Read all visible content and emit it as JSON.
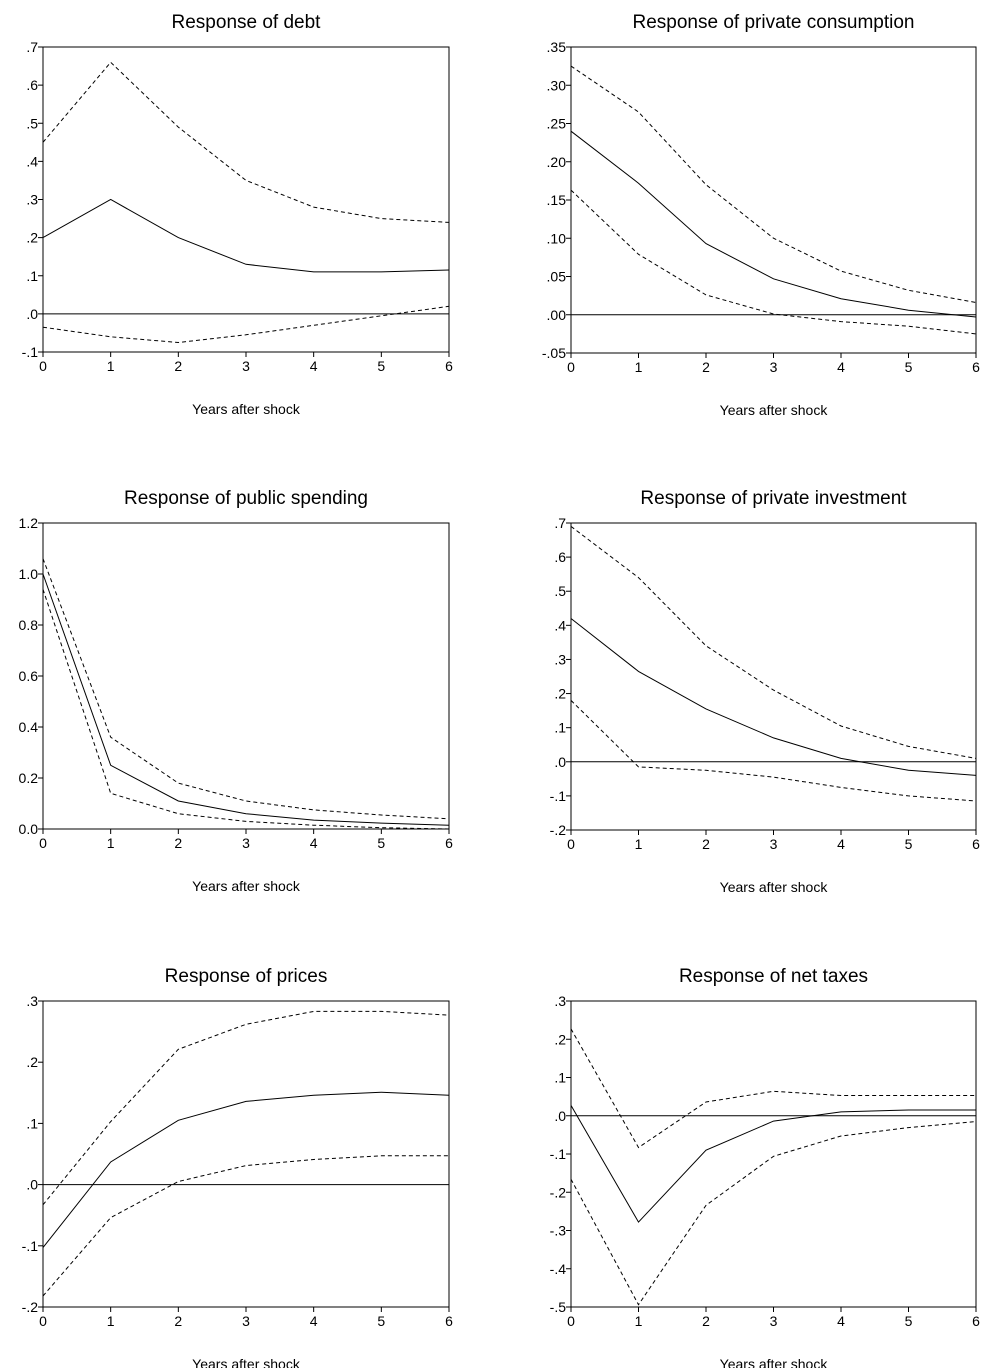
{
  "chart_data": [
    {
      "type": "line",
      "title": "Response of debt",
      "xlabel": "Years after shock",
      "ylabel": "",
      "x": [
        0,
        1,
        2,
        3,
        4,
        5,
        6
      ],
      "xlim": [
        0,
        6
      ],
      "ylim": [
        -0.1,
        0.7
      ],
      "yticks": [
        -0.1,
        0.0,
        0.1,
        0.2,
        0.3,
        0.4,
        0.5,
        0.6,
        0.7
      ],
      "ytick_labels": [
        "-.1",
        ".0",
        ".1",
        ".2",
        ".3",
        ".4",
        ".5",
        ".6",
        ".7"
      ],
      "zero_line": true,
      "grid": false,
      "series": [
        {
          "role": "upper band",
          "style": "dashed",
          "values": [
            0.45,
            0.66,
            0.49,
            0.35,
            0.28,
            0.25,
            0.24
          ]
        },
        {
          "role": "response",
          "style": "solid",
          "values": [
            0.2,
            0.3,
            0.2,
            0.13,
            0.11,
            0.11,
            0.115
          ]
        },
        {
          "role": "lower band",
          "style": "dashed",
          "values": [
            -0.035,
            -0.06,
            -0.075,
            -0.055,
            -0.03,
            -0.005,
            0.02
          ]
        }
      ]
    },
    {
      "type": "line",
      "title": "Response of private consumption",
      "xlabel": "Years after shock",
      "ylabel": "",
      "x": [
        0,
        1,
        2,
        3,
        4,
        5,
        6
      ],
      "xlim": [
        0,
        6
      ],
      "ylim": [
        -0.05,
        0.35
      ],
      "yticks": [
        -0.05,
        0.0,
        0.05,
        0.1,
        0.15,
        0.2,
        0.25,
        0.3,
        0.35
      ],
      "ytick_labels": [
        "-.05",
        ".00",
        ".05",
        ".10",
        ".15",
        ".20",
        ".25",
        ".30",
        ".35"
      ],
      "zero_line": true,
      "grid": false,
      "series": [
        {
          "role": "upper band",
          "style": "dashed",
          "values": [
            0.325,
            0.265,
            0.17,
            0.1,
            0.057,
            0.032,
            0.016
          ]
        },
        {
          "role": "response",
          "style": "solid",
          "values": [
            0.24,
            0.172,
            0.093,
            0.047,
            0.021,
            0.006,
            -0.003
          ]
        },
        {
          "role": "lower band",
          "style": "dashed",
          "values": [
            0.163,
            0.079,
            0.026,
            0.001,
            -0.009,
            -0.015,
            -0.025
          ]
        }
      ]
    },
    {
      "type": "line",
      "title": "Response of public spending",
      "xlabel": "Years after shock",
      "ylabel": "",
      "x": [
        0,
        1,
        2,
        3,
        4,
        5,
        6
      ],
      "xlim": [
        0,
        6
      ],
      "ylim": [
        0.0,
        1.2
      ],
      "yticks": [
        0.0,
        0.2,
        0.4,
        0.6,
        0.8,
        1.0,
        1.2
      ],
      "ytick_labels": [
        "0.0",
        "0.2",
        "0.4",
        "0.6",
        "0.8",
        "1.0",
        "1.2"
      ],
      "zero_line": false,
      "grid": false,
      "series": [
        {
          "role": "upper band",
          "style": "dashed",
          "values": [
            1.06,
            0.36,
            0.18,
            0.11,
            0.075,
            0.055,
            0.04
          ]
        },
        {
          "role": "response",
          "style": "solid",
          "values": [
            1.0,
            0.25,
            0.11,
            0.06,
            0.035,
            0.023,
            0.015
          ]
        },
        {
          "role": "lower band",
          "style": "dashed",
          "values": [
            0.94,
            0.14,
            0.06,
            0.03,
            0.015,
            0.005,
            0.0
          ]
        }
      ]
    },
    {
      "type": "line",
      "title": "Response of private investment",
      "xlabel": "Years after shock",
      "ylabel": "",
      "x": [
        0,
        1,
        2,
        3,
        4,
        5,
        6
      ],
      "xlim": [
        0,
        6
      ],
      "ylim": [
        -0.2,
        0.7
      ],
      "yticks": [
        -0.2,
        -0.1,
        0.0,
        0.1,
        0.2,
        0.3,
        0.4,
        0.5,
        0.6,
        0.7
      ],
      "ytick_labels": [
        "-.2",
        "-.1",
        ".0",
        ".1",
        ".2",
        ".3",
        ".4",
        ".5",
        ".6",
        ".7"
      ],
      "zero_line": true,
      "grid": false,
      "series": [
        {
          "role": "upper band",
          "style": "dashed",
          "values": [
            0.69,
            0.54,
            0.34,
            0.21,
            0.105,
            0.045,
            0.01
          ]
        },
        {
          "role": "response",
          "style": "solid",
          "values": [
            0.42,
            0.265,
            0.155,
            0.07,
            0.01,
            -0.025,
            -0.04
          ]
        },
        {
          "role": "lower band",
          "style": "dashed",
          "values": [
            0.18,
            -0.015,
            -0.025,
            -0.045,
            -0.075,
            -0.1,
            -0.115
          ]
        }
      ]
    },
    {
      "type": "line",
      "title": "Response of prices",
      "xlabel": "Years after shock",
      "ylabel": "",
      "x": [
        0,
        1,
        2,
        3,
        4,
        5,
        6
      ],
      "xlim": [
        0,
        6
      ],
      "ylim": [
        -0.2,
        0.3
      ],
      "yticks": [
        -0.2,
        -0.1,
        0.0,
        0.1,
        0.2,
        0.3
      ],
      "ytick_labels": [
        "-.2",
        "-.1",
        ".0",
        ".1",
        ".2",
        ".3"
      ],
      "zero_line": true,
      "grid": false,
      "series": [
        {
          "role": "upper band",
          "style": "dashed",
          "values": [
            -0.033,
            0.103,
            0.221,
            0.262,
            0.283,
            0.283,
            0.277
          ]
        },
        {
          "role": "response",
          "style": "solid",
          "values": [
            -0.103,
            0.037,
            0.105,
            0.136,
            0.146,
            0.151,
            0.146
          ]
        },
        {
          "role": "lower band",
          "style": "dashed",
          "values": [
            -0.182,
            -0.054,
            0.005,
            0.031,
            0.041,
            0.047,
            0.047
          ]
        }
      ]
    },
    {
      "type": "line",
      "title": "Response of net taxes",
      "xlabel": "Years after shock",
      "ylabel": "",
      "x": [
        0,
        1,
        2,
        3,
        4,
        5,
        6
      ],
      "xlim": [
        0,
        6
      ],
      "ylim": [
        -0.5,
        0.3
      ],
      "yticks": [
        -0.5,
        -0.4,
        -0.3,
        -0.2,
        -0.1,
        0.0,
        0.1,
        0.2,
        0.3
      ],
      "ytick_labels": [
        "-.5",
        "-.4",
        "-.3",
        "-.2",
        "-.1",
        ".0",
        ".1",
        ".2",
        ".3"
      ],
      "zero_line": true,
      "grid": false,
      "series": [
        {
          "role": "upper band",
          "style": "dashed",
          "values": [
            0.227,
            -0.083,
            0.036,
            0.064,
            0.053,
            0.053,
            0.053
          ]
        },
        {
          "role": "response",
          "style": "solid",
          "values": [
            0.027,
            -0.278,
            -0.09,
            -0.014,
            0.01,
            0.015,
            0.015
          ]
        },
        {
          "role": "lower band",
          "style": "dashed",
          "values": [
            -0.166,
            -0.494,
            -0.234,
            -0.106,
            -0.053,
            -0.031,
            -0.015
          ]
        }
      ]
    }
  ]
}
